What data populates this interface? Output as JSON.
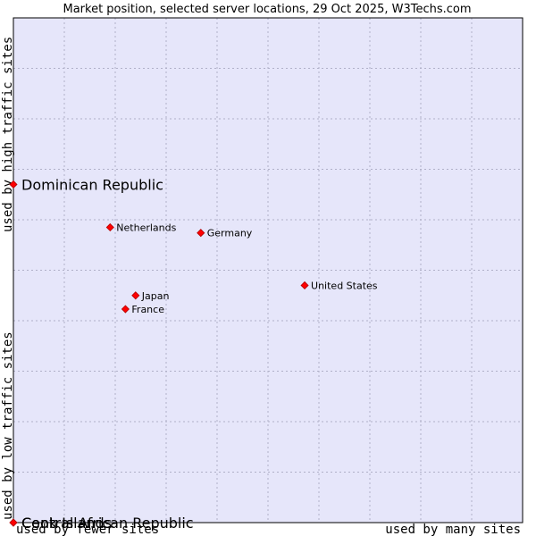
{
  "chart_data": {
    "type": "scatter",
    "title": "Market position, selected server locations, 29 Oct 2025, W3Techs.com",
    "xlabel_left": "used by fewer sites",
    "xlabel_right": "used by many sites",
    "ylabel_top": "used by high traffic sites",
    "ylabel_bottom": "used by low traffic sites",
    "xlim": [
      0,
      100
    ],
    "ylim": [
      0,
      100
    ],
    "grid": true,
    "colors": {
      "plot_background": "#e6e6fa",
      "grid": "#b0b0c8",
      "marker": "#ff0000",
      "marker_stroke": "#b00000",
      "border": "#000000"
    },
    "points": [
      {
        "label": "Dominican Republic",
        "x": 0.0,
        "y": 67.0,
        "highlight": true
      },
      {
        "label": "Netherlands",
        "x": 19.0,
        "y": 58.5,
        "highlight": false
      },
      {
        "label": "Germany",
        "x": 36.8,
        "y": 57.4,
        "highlight": false
      },
      {
        "label": "United States",
        "x": 57.2,
        "y": 47.0,
        "highlight": false
      },
      {
        "label": "Japan",
        "x": 24.0,
        "y": 45.0,
        "highlight": false
      },
      {
        "label": "France",
        "x": 22.0,
        "y": 42.3,
        "highlight": false
      },
      {
        "label": "Central African Republic",
        "x": 0.0,
        "y": 0.0,
        "highlight": true
      },
      {
        "label": "Cook Islands",
        "x": 0.0,
        "y": 0.0,
        "highlight": true
      }
    ]
  }
}
